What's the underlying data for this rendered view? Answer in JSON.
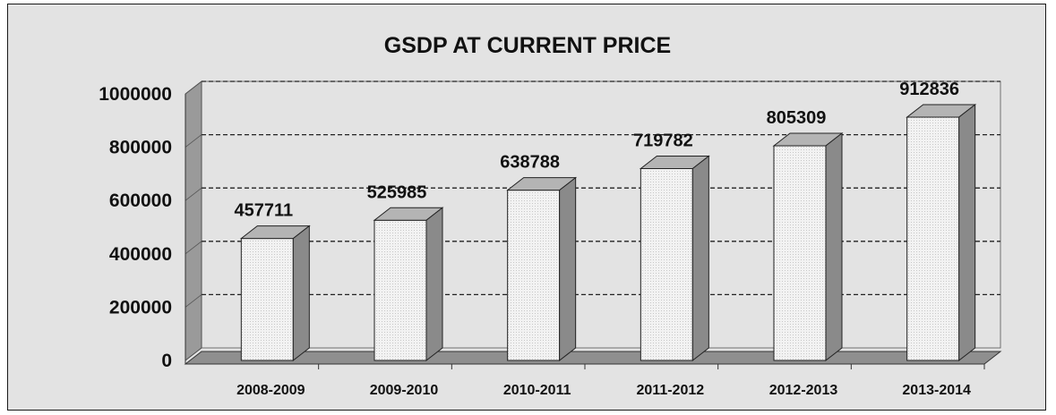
{
  "chart_data": {
    "type": "bar",
    "title": "GSDP AT CURRENT PRICE",
    "categories": [
      "2008-2009",
      "2009-2010",
      "2010-2011",
      "2011-2012",
      "2012-2013",
      "2013-2014"
    ],
    "values": [
      457711,
      525985,
      638788,
      719782,
      805309,
      912836
    ],
    "data_labels": [
      "457711",
      "525985",
      "638788",
      "719782",
      "805309",
      "912836"
    ],
    "ylim": [
      0,
      1000000
    ],
    "yticks": [
      0,
      200000,
      400000,
      600000,
      800000,
      1000000
    ],
    "ytick_labels": [
      "0",
      "200000",
      "400000",
      "600000",
      "800000",
      "1000000"
    ],
    "xlabel": "",
    "ylabel": "",
    "grid": "dashed horizontal",
    "style": "3d-column",
    "colors": {
      "background": "#e3e3e3",
      "bar_front": "#f0f0f0",
      "bar_top": "#b4b4b4",
      "bar_side": "#8a8a8a",
      "floor": "#8f8f8f",
      "gridline": "#222222"
    }
  }
}
